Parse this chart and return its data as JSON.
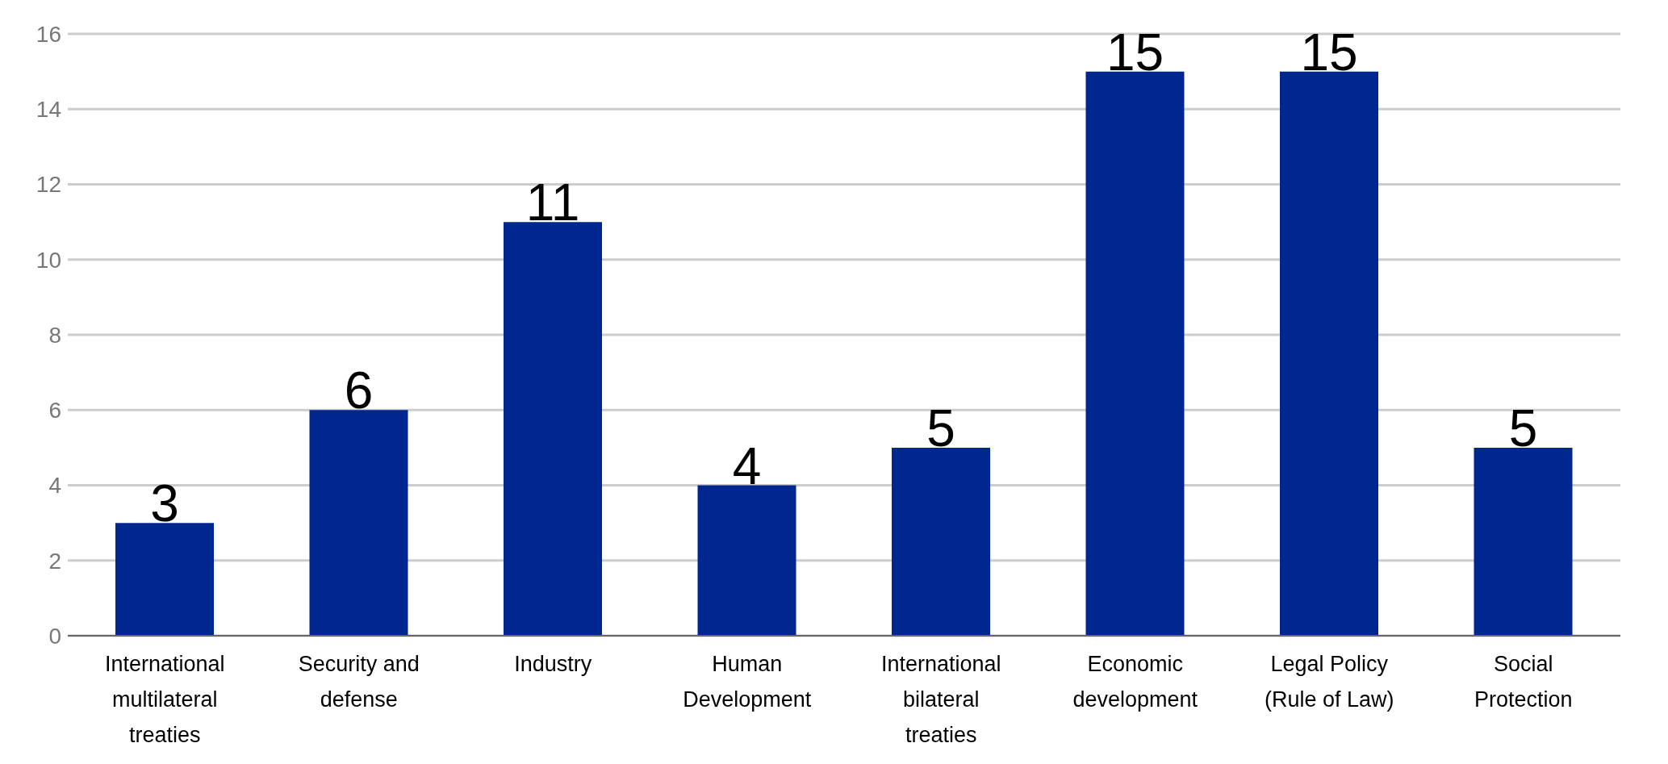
{
  "chart_data": {
    "type": "bar",
    "categories": [
      "International multilateral treaties",
      "Security and defense",
      "Industry",
      "Human Development",
      "International bilateral treaties",
      "Economic development",
      "Legal Policy (Rule of Law)",
      "Social Protection"
    ],
    "values": [
      3,
      6,
      11,
      4,
      5,
      15,
      15,
      5
    ],
    "color": "#00268f",
    "ylim": [
      0,
      16
    ],
    "yticks": [
      0,
      2,
      4,
      6,
      8,
      10,
      12,
      14,
      16
    ],
    "grid": "y",
    "data_labels": true
  }
}
